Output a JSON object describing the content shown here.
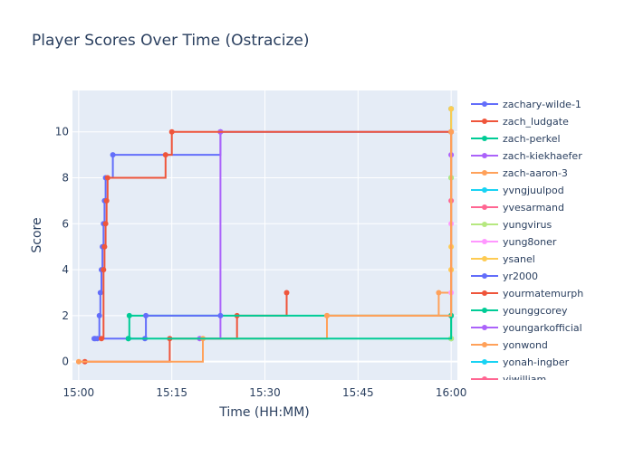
{
  "chart_data": {
    "type": "line",
    "line_shape": "step",
    "title": "Player Scores Over Time (Ostracize)",
    "xlabel": "Time (HH:MM)",
    "ylabel": "Score",
    "x_range": [
      "14:59",
      "16:01"
    ],
    "ylim": [
      -0.8,
      11.8
    ],
    "x_ticks": [
      {
        "t": "15:00",
        "label": "15:00"
      },
      {
        "t": "15:15",
        "label": "15:15"
      },
      {
        "t": "15:30",
        "label": "15:30"
      },
      {
        "t": "15:45",
        "label": "15:45"
      },
      {
        "t": "16:00",
        "label": "16:00"
      }
    ],
    "y_ticks": [
      0,
      2,
      4,
      6,
      8,
      10
    ],
    "grid": true,
    "legend_position": "right",
    "series": [
      {
        "name": "zachary-wilde-1",
        "color": "#636efa",
        "points": [
          [
            "15:02:30",
            1
          ],
          [
            "15:03:00",
            1
          ],
          [
            "15:03:20",
            2
          ],
          [
            "15:03:30",
            3
          ],
          [
            "15:03:40",
            4
          ],
          [
            "15:03:50",
            5
          ],
          [
            "15:04:00",
            6
          ],
          [
            "15:04:10",
            7
          ],
          [
            "15:04:20",
            8
          ],
          [
            "15:05:30",
            9
          ],
          [
            "15:22:50",
            10
          ],
          [
            "16:00:00",
            10
          ]
        ]
      },
      {
        "name": "zach_ludgate",
        "color": "#ef553b",
        "points": [
          [
            "15:01:00",
            0
          ],
          [
            "15:14:40",
            1
          ],
          [
            "15:25:30",
            2
          ],
          [
            "15:33:30",
            3
          ]
        ]
      },
      {
        "name": "zach-perkel",
        "color": "#00cc96",
        "points": [
          [
            "15:08:00",
            1
          ],
          [
            "15:08:10",
            2
          ],
          [
            "16:00:00",
            2
          ],
          [
            "16:00:00",
            1
          ],
          [
            "16:00:00",
            8
          ],
          [
            "16:00:00",
            11
          ]
        ]
      },
      {
        "name": "zach-kiekhaefer",
        "color": "#ab63fa",
        "points": [
          [
            "15:19:30",
            1
          ],
          [
            "15:22:50",
            10
          ]
        ]
      },
      {
        "name": "zach-aaron-3",
        "color": "#ffa15a",
        "points": [
          [
            "15:00:00",
            0
          ],
          [
            "15:20:00",
            1
          ],
          [
            "15:40:00",
            2
          ],
          [
            "15:58:00",
            3
          ],
          [
            "16:00:00",
            4
          ],
          [
            "16:00:00",
            10
          ]
        ]
      },
      {
        "name": "yvngjuulpod",
        "color": "#19d3f3",
        "points": []
      },
      {
        "name": "yvesarmand",
        "color": "#ff6692",
        "points": [
          [
            "16:00:00",
            7
          ]
        ]
      },
      {
        "name": "yungvirus",
        "color": "#b6e880",
        "points": [
          [
            "16:00:00",
            1
          ],
          [
            "16:00:00",
            8
          ]
        ]
      },
      {
        "name": "yung8oner",
        "color": "#ff97ff",
        "points": [
          [
            "16:00:00",
            3
          ],
          [
            "16:00:00",
            6
          ],
          [
            "16:00:00",
            9
          ]
        ]
      },
      {
        "name": "ysanel",
        "color": "#fecb52",
        "points": [
          [
            "16:00:00",
            4
          ],
          [
            "16:00:00",
            5
          ],
          [
            "16:00:00",
            11
          ]
        ]
      },
      {
        "name": "yr2000",
        "color": "#636efa",
        "points": [
          [
            "15:02:40",
            1
          ],
          [
            "15:10:40",
            1
          ],
          [
            "15:10:50",
            2
          ],
          [
            "15:22:50",
            2
          ]
        ]
      },
      {
        "name": "yourmatemurph",
        "color": "#ef553b",
        "points": [
          [
            "15:03:40",
            1
          ],
          [
            "15:04:00",
            4
          ],
          [
            "15:04:10",
            5
          ],
          [
            "15:04:20",
            6
          ],
          [
            "15:04:30",
            7
          ],
          [
            "15:04:40",
            8
          ],
          [
            "15:14:00",
            9
          ],
          [
            "15:15:00",
            10
          ],
          [
            "16:00:00",
            10
          ],
          [
            "16:00:00",
            2
          ]
        ]
      },
      {
        "name": "younggcorey",
        "color": "#00cc96",
        "points": [
          [
            "15:08:00",
            1
          ],
          [
            "16:00:00",
            2
          ]
        ]
      },
      {
        "name": "youngarkofficial",
        "color": "#ab63fa",
        "points": [
          [
            "16:00:00",
            9
          ]
        ]
      },
      {
        "name": "yonwond",
        "color": "#ffa15a",
        "points": [
          [
            "15:40:00",
            2
          ],
          [
            "16:00:00",
            10
          ]
        ]
      },
      {
        "name": "yonah-ingber",
        "color": "#19d3f3",
        "points": []
      },
      {
        "name": "yjwilliam",
        "color": "#ff6692",
        "points": []
      }
    ]
  }
}
